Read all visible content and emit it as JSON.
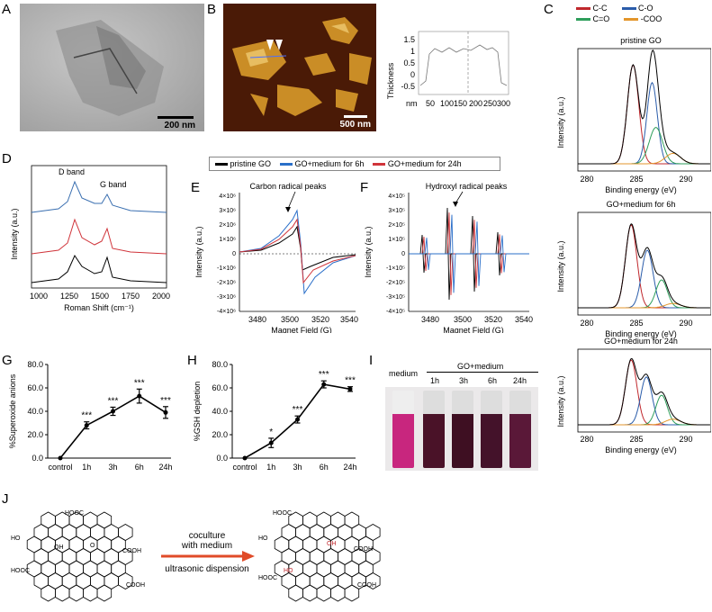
{
  "panels": {
    "A": {
      "label": "A",
      "scale_bar": "200 nm"
    },
    "B": {
      "label": "B",
      "scale_bar": "500 nm",
      "profile": {
        "ylabel": "Thickness",
        "xlabel": "nm",
        "yticks": [
          "1.5",
          "1",
          "0.5",
          "0",
          "-0.5"
        ],
        "xticks": [
          "50",
          "100150",
          "200",
          "250300"
        ]
      }
    },
    "C": {
      "label": "C",
      "legend": [
        {
          "name": "C-C",
          "color": "#c0282d"
        },
        {
          "name": "C-O",
          "color": "#2a5caa"
        },
        {
          "name": "C=O",
          "color": "#2e9e5b"
        },
        {
          "name": "-COO",
          "color": "#e3962b"
        }
      ],
      "plots": [
        {
          "title": "pristine GO",
          "ylabel": "Intensity (a.u.)",
          "xlabel": "Binding energy (eV)",
          "xticks": [
            "280",
            "285",
            "290"
          ]
        },
        {
          "title": "GO+medium for 6h",
          "ylabel": "Intensity (a.u.)",
          "xlabel": "Binding energy (eV)",
          "xticks": [
            "280",
            "285",
            "290"
          ]
        },
        {
          "title": "GO+medium for 24h",
          "ylabel": "Intensity (a.u.)",
          "xlabel": "Binding energy (eV)",
          "xticks": [
            "280",
            "285",
            "290"
          ]
        }
      ]
    },
    "D": {
      "label": "D",
      "ylabel": "Intensity (a.u.)",
      "xlabel": "Roman Shift (cm⁻¹)",
      "xticks": [
        "1000",
        "1250",
        "1500",
        "1750",
        "2000"
      ],
      "dband": "D band",
      "gband": "G band"
    },
    "EF_legend": [
      {
        "name": "pristine GO",
        "color": "#000000"
      },
      {
        "name": "GO+medium for 6h",
        "color": "#2a6fc9"
      },
      {
        "name": "GO+medium for 24h",
        "color": "#d0343a"
      }
    ],
    "E": {
      "label": "E",
      "annotation": "Carbon radical peaks",
      "ylabel": "Intensity (a.u.)",
      "xlabel": "Magnet Field (G)",
      "xticks": [
        "3480",
        "3500",
        "3520",
        "3540"
      ],
      "yticks": [
        "4×10⁶",
        "3×10⁶",
        "2×10⁶",
        "1×10⁶",
        "0",
        "-1×10⁶",
        "-2×10⁶",
        "-3×10⁶",
        "-4×10⁶"
      ]
    },
    "F": {
      "label": "F",
      "annotation": "Hydroxyl radical peaks",
      "ylabel": "Intensity (a.u.)",
      "xlabel": "Magnet Field (G)",
      "xticks": [
        "3480",
        "3500",
        "3520",
        "3540"
      ],
      "yticks": [
        "4×10⁵",
        "3×10⁵",
        "2×10⁵",
        "1×10⁵",
        "0",
        "-1×10⁵",
        "-2×10⁵",
        "-3×10⁵",
        "-4×10⁵"
      ]
    },
    "G": {
      "label": "G",
      "ylabel": "%Superoxide anions",
      "yticks": [
        "80.0",
        "60.0",
        "40.0",
        "20.0",
        "0.0"
      ]
    },
    "H": {
      "label": "H",
      "ylabel": "%GSH depletion",
      "yticks": [
        "80.0",
        "60.0",
        "40.0",
        "20.0",
        "0.0"
      ]
    },
    "I": {
      "label": "I",
      "medium": "medium",
      "group": "GO+medium",
      "times": [
        "1h",
        "3h",
        "6h",
        "24h"
      ]
    },
    "J": {
      "label": "J",
      "arrow_top": "coculture",
      "arrow_mid": "with medium",
      "arrow_bottom": "ultrasonic dispension",
      "cooh": "COOH",
      "hooc": "HOOC",
      "ho": "HO",
      "oh": "OH",
      "o": "O"
    }
  },
  "chart_data": [
    {
      "type": "line",
      "name": "G",
      "categories": [
        "control",
        "1h",
        "3h",
        "6h",
        "24h"
      ],
      "values": [
        0,
        28,
        40,
        53,
        39
      ],
      "errors": [
        0,
        3,
        3.5,
        6,
        5
      ],
      "significance": [
        "",
        "***",
        "***",
        "***",
        "***"
      ],
      "ylabel": "%Superoxide anions",
      "ylim": [
        0,
        80
      ]
    },
    {
      "type": "line",
      "name": "H",
      "categories": [
        "control",
        "1h",
        "3h",
        "6h",
        "24h"
      ],
      "values": [
        0,
        13,
        33,
        63,
        59
      ],
      "errors": [
        0,
        4,
        3,
        3,
        2
      ],
      "significance": [
        "",
        "*",
        "***",
        "***",
        "***"
      ],
      "ylabel": "%GSH depletion",
      "ylim": [
        0,
        80
      ]
    }
  ]
}
